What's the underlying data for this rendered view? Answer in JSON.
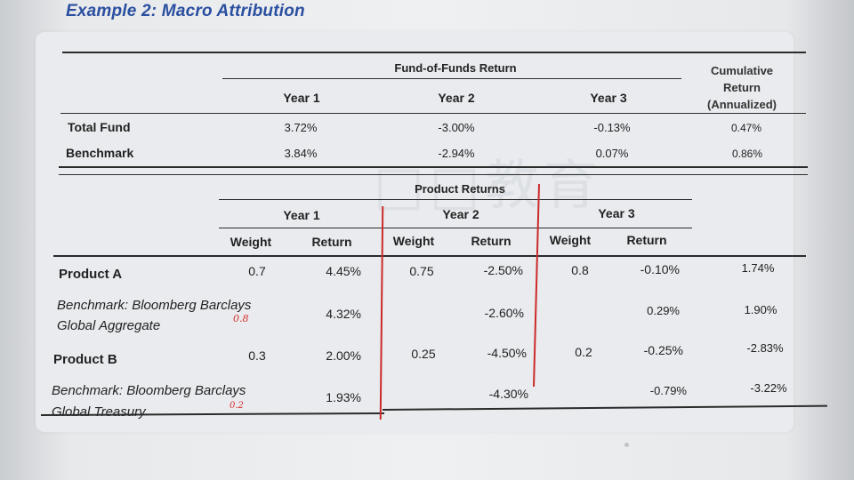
{
  "title": "Example 2: Macro Attribution",
  "top_table": {
    "group_header": "Fund-of-Funds Return",
    "cumulative_header": "Cumulative\nReturn\n(Annualized)",
    "columns": [
      "Year 1",
      "Year 2",
      "Year 3"
    ],
    "rows": [
      {
        "label": "Total Fund",
        "values": [
          "3.72%",
          "-3.00%",
          "-0.13%"
        ],
        "cumulative": "0.47%"
      },
      {
        "label": "Benchmark",
        "values": [
          "3.84%",
          "-2.94%",
          "0.07%"
        ],
        "cumulative": "0.86%"
      }
    ]
  },
  "bottom_table": {
    "group_header": "Product Returns",
    "years": [
      "Year 1",
      "Year 2",
      "Year 3"
    ],
    "subheaders": [
      "Weight",
      "Return",
      "Weight",
      "Return",
      "Weight",
      "Return"
    ],
    "rows": [
      {
        "label": "Product A",
        "y1_weight": "0.7",
        "y1_return": "4.45%",
        "y2_weight": "0.75",
        "y2_return": "-2.50%",
        "y3_weight": "0.8",
        "y3_return": "-0.10%",
        "cumulative": "1.74%"
      },
      {
        "label_line1": "Benchmark: Bloomberg Barclays",
        "label_line2": "Global Aggregate",
        "y1_return": "4.32%",
        "y2_return": "-2.60%",
        "y3_return": "0.29%",
        "cumulative": "1.90%",
        "handwritten": "0.8"
      },
      {
        "label": "Product B",
        "y1_weight": "0.3",
        "y1_return": "2.00%",
        "y2_weight": "0.25",
        "y2_return": "-4.50%",
        "y3_weight": "0.2",
        "y3_return": "-0.25%",
        "cumulative": "-2.83%"
      },
      {
        "label_line1": "Benchmark: Bloomberg Barclays",
        "label_line2": "Global Treasury",
        "y1_return": "1.93%",
        "y2_return": "-4.30%",
        "y3_return": "-0.79%",
        "cumulative": "-3.22%",
        "handwritten": "0.2"
      }
    ]
  },
  "colors": {
    "title": "#2a4fa0",
    "annotation_red": "#cc2a2a"
  }
}
